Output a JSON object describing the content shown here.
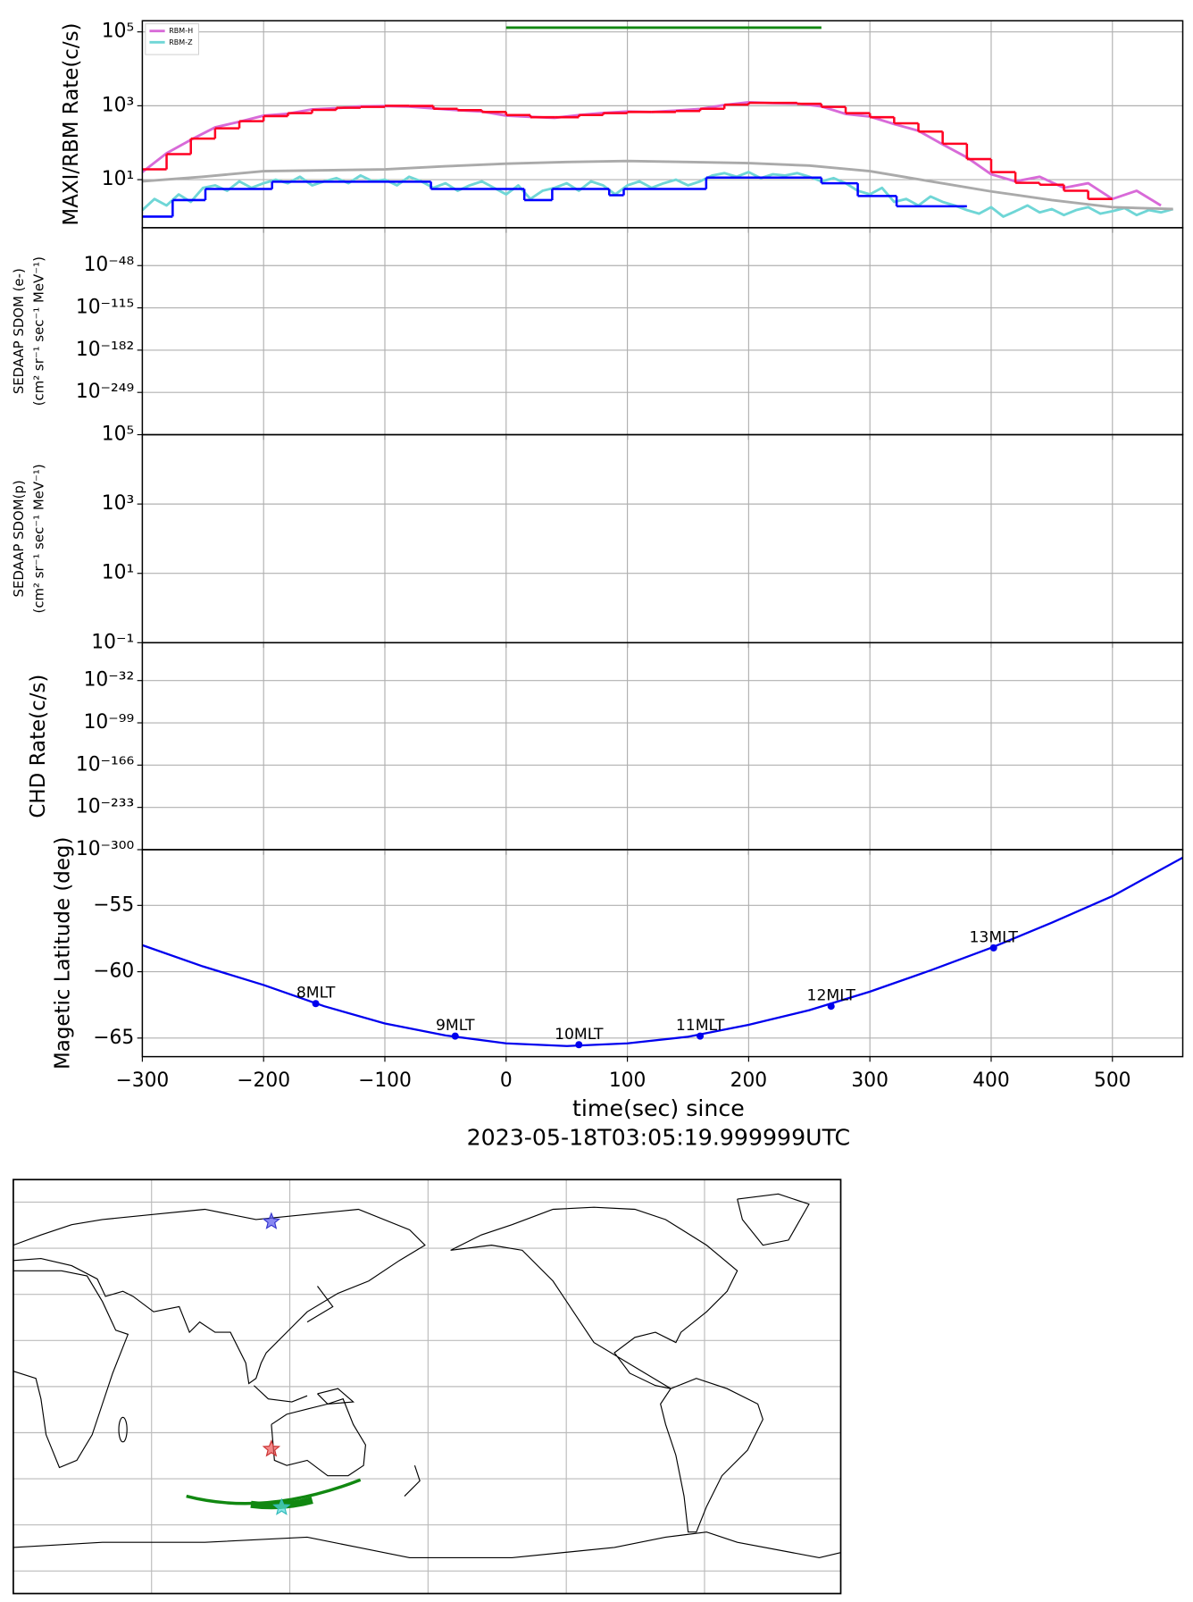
{
  "chart_data": [
    {
      "type": "line",
      "yscale": "log",
      "y_label": "MAXI/RBM Rate(c/s)",
      "legend": "upper left",
      "grid": true,
      "xlim": [
        -300,
        558
      ],
      "xticks": [
        {
          "value": -300,
          "label": "−300"
        },
        {
          "value": -200,
          "label": "−200"
        },
        {
          "value": -100,
          "label": "−100"
        },
        0,
        100,
        200,
        300,
        400,
        500
      ],
      "ylim": [
        0.5,
        200000
      ],
      "yticks": [
        {
          "value": 100000,
          "label": "10⁵"
        },
        {
          "value": 1000,
          "label": "10³"
        },
        {
          "value": 10,
          "label": "10¹"
        }
      ],
      "series": [
        {
          "name": "RBM-H",
          "color": "#d86ad8",
          "x": [
            -300,
            -280,
            -260,
            -240,
            -220,
            -200,
            -180,
            -160,
            -140,
            -120,
            -100,
            -80,
            -60,
            -40,
            -20,
            0,
            20,
            40,
            60,
            80,
            100,
            120,
            140,
            160,
            180,
            200,
            220,
            240,
            260,
            280,
            300,
            320,
            340,
            360,
            380,
            400,
            420,
            440,
            460,
            480,
            500,
            520,
            540
          ],
          "values": [
            16,
            52,
            120,
            260,
            370,
            540,
            610,
            800,
            860,
            960,
            980,
            950,
            850,
            760,
            700,
            540,
            500,
            470,
            560,
            640,
            700,
            680,
            740,
            820,
            1050,
            1250,
            1180,
            1150,
            960,
            600,
            510,
            320,
            210,
            90,
            40,
            14,
            9,
            12,
            6,
            8,
            3,
            5,
            2
          ]
        },
        {
          "name": "RBM-Z",
          "color": "#6fd6d6",
          "x": [
            -300,
            -290,
            -280,
            -270,
            -260,
            -250,
            -240,
            -230,
            -220,
            -210,
            -200,
            -190,
            -180,
            -170,
            -160,
            -150,
            -140,
            -130,
            -120,
            -110,
            -100,
            -90,
            -80,
            -70,
            -60,
            -50,
            -40,
            -30,
            -20,
            -10,
            0,
            10,
            20,
            30,
            40,
            50,
            60,
            70,
            80,
            90,
            100,
            110,
            120,
            130,
            140,
            150,
            160,
            170,
            180,
            190,
            200,
            210,
            220,
            230,
            240,
            250,
            260,
            270,
            280,
            290,
            300,
            310,
            320,
            330,
            340,
            350,
            360,
            370,
            380,
            390,
            400,
            410,
            420,
            430,
            440,
            450,
            460,
            470,
            480,
            490,
            500,
            510,
            520,
            530,
            540,
            550
          ],
          "values": [
            1.5,
            3,
            2,
            4,
            2.5,
            6,
            7,
            5,
            9,
            6,
            8,
            10,
            8,
            12,
            7,
            9,
            11,
            8,
            13,
            9,
            10,
            7,
            12,
            9,
            6,
            8,
            5,
            7,
            9,
            6,
            4,
            7,
            3,
            5,
            6,
            8,
            5,
            9,
            7,
            4,
            7,
            9,
            6,
            8,
            10,
            7,
            9,
            13,
            15,
            12,
            16,
            11,
            14,
            13,
            15,
            12,
            9,
            11,
            8,
            5,
            4,
            6,
            2.5,
            3,
            2,
            3.5,
            2.5,
            2,
            1.5,
            1.2,
            1.8,
            1,
            1.4,
            2,
            1.3,
            1.6,
            1.1,
            1.5,
            1.8,
            1.2,
            1.4,
            1.7,
            1.1,
            1.5,
            1.3,
            1.6
          ]
        },
        {
          "color": "#ff0022",
          "step": "post",
          "x": [
            -300,
            -280,
            -260,
            -240,
            -220,
            -200,
            -180,
            -160,
            -140,
            -120,
            -100,
            -80,
            -60,
            -40,
            -20,
            0,
            20,
            40,
            60,
            80,
            100,
            120,
            140,
            160,
            180,
            200,
            220,
            240,
            260,
            280,
            300,
            320,
            340,
            360,
            380,
            400,
            420,
            440,
            460,
            480,
            500
          ],
          "values": [
            19,
            49,
            129,
            245,
            383,
            525,
            630,
            775,
            880,
            935,
            1000,
            990,
            830,
            760,
            680,
            560,
            490,
            490,
            560,
            630,
            680,
            680,
            720,
            830,
            1070,
            1200,
            1200,
            1130,
            935,
            630,
            490,
            335,
            200,
            94,
            36,
            16,
            8.2,
            7.3,
            5,
            3,
            3
          ]
        },
        {
          "color": "#0000ff",
          "step": "post",
          "x": [
            -300,
            -275,
            -248,
            -193,
            -62,
            15,
            38,
            85,
            97,
            165,
            260,
            290,
            322,
            380
          ],
          "values": [
            1,
            2.8,
            5.6,
            8.8,
            5.6,
            2.8,
            5.6,
            3.8,
            5.6,
            11.4,
            8,
            3.6,
            1.9,
            1.9
          ]
        },
        {
          "color": "#aaaaaa",
          "x": [
            -300,
            -250,
            -200,
            -100,
            -50,
            0,
            50,
            100,
            150,
            200,
            250,
            300,
            350,
            400,
            450,
            500,
            550
          ],
          "values": [
            9,
            12,
            17,
            19,
            23,
            27,
            30,
            32,
            30,
            28,
            24,
            17,
            9,
            4.8,
            2.8,
            1.8,
            1.6
          ]
        },
        {
          "color": "#118811",
          "x": [
            0,
            260
          ],
          "values": [
            130000,
            130000
          ]
        }
      ]
    },
    {
      "type": "line",
      "yscale": "log",
      "y_label": [
        "SEDAAP SDOM (e-)",
        "(cm² sr⁻¹ sec⁻¹ MeV⁻¹)"
      ],
      "grid": true,
      "xlim": [
        -300,
        558
      ],
      "xticks": [
        {
          "value": -300,
          "label": "−300"
        },
        {
          "value": -200,
          "label": "−200"
        },
        {
          "value": -100,
          "label": "−100"
        },
        0,
        100,
        200,
        300,
        400,
        500
      ],
      "ylim": [
        1e-316,
        1000000000000.0
      ],
      "yticks": [
        {
          "value": 1e-48,
          "label": "10⁻⁴⁸"
        },
        {
          "value": 1e-115,
          "label": "10⁻¹¹⁵"
        },
        {
          "value": 1e-182,
          "label": "10⁻¹⁸²"
        },
        {
          "value": 1e-249,
          "label": "10⁻²⁴⁹"
        }
      ]
    },
    {
      "type": "line",
      "yscale": "log",
      "y_label": [
        "SEDAAP SDOM(p)",
        "(cm² sr⁻¹ sec⁻¹ MeV⁻¹)"
      ],
      "grid": true,
      "xlim": [
        -300,
        558
      ],
      "xticks": [
        {
          "value": -300,
          "label": "−300"
        },
        {
          "value": -200,
          "label": "−200"
        },
        {
          "value": -100,
          "label": "−100"
        },
        0,
        100,
        200,
        300,
        400,
        500
      ],
      "ylim": [
        0.1,
        100000
      ],
      "yticks": [
        {
          "value": 100000,
          "label": "10⁵"
        },
        {
          "value": 1000,
          "label": "10³"
        },
        {
          "value": 10,
          "label": "10¹"
        },
        {
          "value": 0.1,
          "label": "10⁻¹"
        }
      ]
    },
    {
      "type": "line",
      "yscale": "log",
      "y_label": "CHD Rate(c/s)",
      "grid": true,
      "xlim": [
        -300,
        558
      ],
      "xticks": [
        {
          "value": -300,
          "label": "−300"
        },
        {
          "value": -200,
          "label": "−200"
        },
        {
          "value": -100,
          "label": "−100"
        },
        0,
        100,
        200,
        300,
        400,
        500
      ],
      "ylim": [
        1e-300,
        1e+28
      ],
      "yticks": [
        {
          "value": 1e-32,
          "label": "10⁻³²"
        },
        {
          "value": 1e-99,
          "label": "10⁻⁹⁹"
        },
        {
          "value": 1e-166,
          "label": "10⁻¹⁶⁶"
        },
        {
          "value": 1e-233,
          "label": "10⁻²³³"
        },
        {
          "value": 1e-300,
          "label": "10⁻³⁰⁰"
        }
      ]
    },
    {
      "type": "line",
      "y_label": "Magetic Latitude  (deg)",
      "x_label": [
        "time(sec) since",
        "2023-05-18T03:05:19.999999UTC"
      ],
      "grid": true,
      "show_xticks": true,
      "xlim": [
        -300,
        558
      ],
      "xticks": [
        {
          "value": -300,
          "label": "−300"
        },
        {
          "value": -200,
          "label": "−200"
        },
        {
          "value": -100,
          "label": "−100"
        },
        0,
        100,
        200,
        300,
        400,
        500
      ],
      "ylim": [
        -66.4,
        -50.8
      ],
      "yticks": [
        {
          "value": -55,
          "label": "−55"
        },
        {
          "value": -60,
          "label": "−60"
        },
        {
          "value": -65,
          "label": "−65"
        }
      ],
      "series": [
        {
          "color": "#0000ee",
          "x": [
            -300,
            -250,
            -200,
            -150,
            -100,
            -50,
            0,
            50,
            100,
            150,
            200,
            250,
            300,
            350,
            400,
            450,
            500,
            558
          ],
          "values": [
            -58.0,
            -59.6,
            -61.0,
            -62.6,
            -63.9,
            -64.8,
            -65.4,
            -65.6,
            -65.4,
            -64.9,
            -64.0,
            -62.9,
            -61.5,
            -59.9,
            -58.2,
            -56.3,
            -54.3,
            -51.4
          ]
        }
      ],
      "annotations": [
        {
          "text": "8MLT",
          "x": -157,
          "y": -62.4
        },
        {
          "text": "9MLT",
          "x": -42,
          "y": -64.85
        },
        {
          "text": "10MLT",
          "x": 60,
          "y": -65.5
        },
        {
          "text": "11MLT",
          "x": 160,
          "y": -64.85
        },
        {
          "text": "12MLT",
          "x": 268,
          "y": -62.6
        },
        {
          "text": "13MLT",
          "x": 402,
          "y": -58.2
        }
      ]
    }
  ]
}
